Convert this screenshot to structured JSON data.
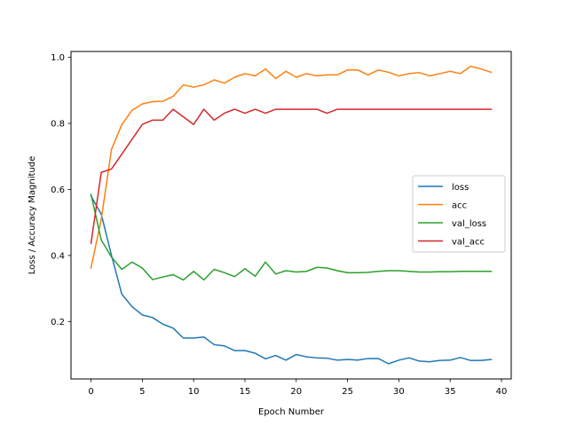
{
  "chart_data": {
    "type": "line",
    "title": "",
    "xlabel": "Epoch Number",
    "ylabel": "Loss / Accuracy Magnitude",
    "xlim": [
      -1.95,
      40.95
    ],
    "ylim": [
      0.026,
      1.018
    ],
    "xticks": [
      0,
      5,
      10,
      15,
      20,
      25,
      30,
      35,
      40
    ],
    "yticks": [
      0.2,
      0.4,
      0.6,
      0.8,
      1.0
    ],
    "ytick_labels": [
      "0.2",
      "0.4",
      "0.6",
      "0.8",
      "1.0"
    ],
    "grid": false,
    "legend_position": "center-right",
    "x": [
      0,
      1,
      2,
      3,
      4,
      5,
      6,
      7,
      8,
      9,
      10,
      11,
      12,
      13,
      14,
      15,
      16,
      17,
      18,
      19,
      20,
      21,
      22,
      23,
      24,
      25,
      26,
      27,
      28,
      29,
      30,
      31,
      32,
      33,
      34,
      35,
      36,
      37,
      38,
      39
    ],
    "series": [
      {
        "name": "loss",
        "color": "#1f77b4",
        "values": [
          0.58,
          0.525,
          0.4,
          0.283,
          0.245,
          0.22,
          0.212,
          0.192,
          0.18,
          0.15,
          0.15,
          0.153,
          0.13,
          0.126,
          0.112,
          0.112,
          0.104,
          0.087,
          0.097,
          0.083,
          0.1,
          0.093,
          0.09,
          0.089,
          0.083,
          0.085,
          0.083,
          0.088,
          0.088,
          0.072,
          0.083,
          0.09,
          0.08,
          0.078,
          0.082,
          0.083,
          0.091,
          0.082,
          0.082,
          0.085
        ]
      },
      {
        "name": "acc",
        "color": "#ff7f0e",
        "values": [
          0.362,
          0.51,
          0.722,
          0.796,
          0.84,
          0.859,
          0.866,
          0.867,
          0.882,
          0.917,
          0.91,
          0.917,
          0.932,
          0.922,
          0.94,
          0.951,
          0.944,
          0.965,
          0.936,
          0.958,
          0.94,
          0.951,
          0.944,
          0.947,
          0.947,
          0.962,
          0.962,
          0.947,
          0.962,
          0.955,
          0.944,
          0.951,
          0.954,
          0.944,
          0.951,
          0.958,
          0.951,
          0.973,
          0.965,
          0.955
        ]
      },
      {
        "name": "val_loss",
        "color": "#2ca02c",
        "values": [
          0.585,
          0.447,
          0.395,
          0.358,
          0.38,
          0.362,
          0.327,
          0.335,
          0.342,
          0.326,
          0.352,
          0.326,
          0.358,
          0.348,
          0.336,
          0.36,
          0.337,
          0.38,
          0.344,
          0.354,
          0.35,
          0.352,
          0.364,
          0.362,
          0.354,
          0.348,
          0.348,
          0.349,
          0.352,
          0.354,
          0.354,
          0.352,
          0.35,
          0.35,
          0.351,
          0.351,
          0.352,
          0.352,
          0.352,
          0.352
        ]
      },
      {
        "name": "val_acc",
        "color": "#d62728",
        "values": [
          0.437,
          0.652,
          0.662,
          0.707,
          0.752,
          0.797,
          0.81,
          0.81,
          0.843,
          0.82,
          0.797,
          0.843,
          0.81,
          0.831,
          0.843,
          0.831,
          0.843,
          0.831,
          0.843,
          0.843,
          0.843,
          0.843,
          0.843,
          0.831,
          0.843,
          0.843,
          0.843,
          0.843,
          0.843,
          0.843,
          0.843,
          0.843,
          0.843,
          0.843,
          0.843,
          0.843,
          0.843,
          0.843,
          0.843,
          0.843
        ]
      }
    ]
  }
}
